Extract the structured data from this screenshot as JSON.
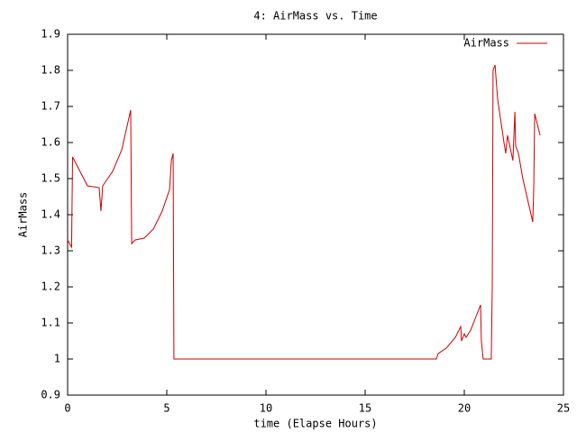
{
  "chart_data": {
    "type": "line",
    "title": "4: AirMass vs. Time",
    "x_label": "time (Elapse Hours)",
    "y_label": "AirMass",
    "x": [
      0,
      0.2,
      0.25,
      1.0,
      1.59,
      1.68,
      1.77,
      2.27,
      2.73,
      3.18,
      3.23,
      3.41,
      3.86,
      4.32,
      4.77,
      5.14,
      5.23,
      5.32,
      5.36,
      18.59,
      18.68,
      19.09,
      19.55,
      19.82,
      19.86,
      20.0,
      20.09,
      20.32,
      20.82,
      20.86,
      20.95,
      21.36,
      21.41,
      21.45,
      21.55,
      21.68,
      22.0,
      22.09,
      22.18,
      22.45,
      22.55,
      22.59,
      22.73,
      22.95,
      23.45,
      23.5,
      23.55,
      23.82
    ],
    "series": [
      {
        "name": "AirMass",
        "color": "#cc0000",
        "values": [
          1.33,
          1.31,
          1.56,
          1.48,
          1.475,
          1.41,
          1.48,
          1.52,
          1.58,
          1.69,
          1.32,
          1.33,
          1.335,
          1.36,
          1.41,
          1.47,
          1.55,
          1.57,
          1.0,
          1.0,
          1.015,
          1.03,
          1.06,
          1.09,
          1.05,
          1.07,
          1.06,
          1.08,
          1.15,
          1.05,
          1.0,
          1.0,
          1.2,
          1.8,
          1.815,
          1.72,
          1.6,
          1.57,
          1.62,
          1.55,
          1.685,
          1.59,
          1.57,
          1.5,
          1.38,
          1.47,
          1.68,
          1.62
        ]
      }
    ],
    "xlim": [
      0,
      25
    ],
    "xticks": [
      0,
      5,
      10,
      15,
      20,
      25
    ],
    "ylim": [
      0.9,
      1.9
    ],
    "yticks": [
      0.9,
      1,
      1.1,
      1.2,
      1.3,
      1.4,
      1.5,
      1.6,
      1.7,
      1.8,
      1.9
    ],
    "legend": "top-right",
    "grid": false
  }
}
